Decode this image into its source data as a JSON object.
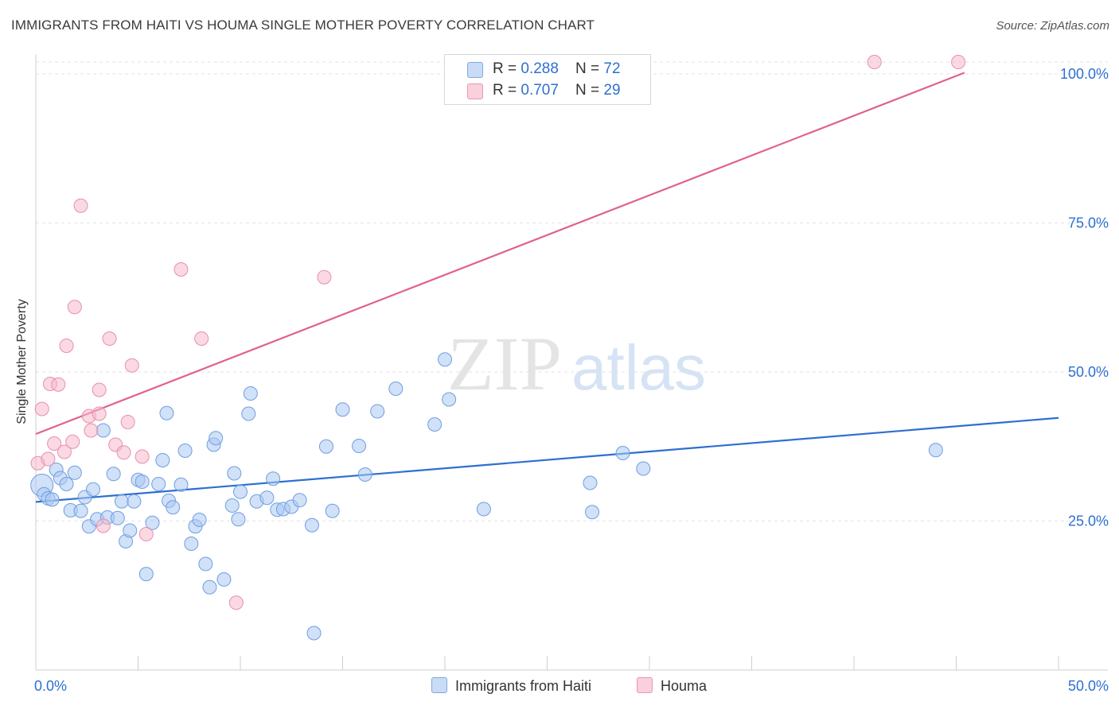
{
  "title": "IMMIGRANTS FROM HAITI VS HOUMA SINGLE MOTHER POVERTY CORRELATION CHART",
  "source": "Source: ZipAtlas.com",
  "watermark": {
    "zip": "ZIP",
    "atlas": "atlas"
  },
  "legend": {
    "series1": {
      "r_label": "R = ",
      "r": "0.288",
      "n_label": "N = ",
      "n": "72",
      "color": "#a9c9f3",
      "line": "#2e6fd0"
    },
    "series2": {
      "r_label": "R = ",
      "r": "0.707",
      "n_label": "N = ",
      "n": "29",
      "color": "#f6b9cc",
      "line": "#e0628b"
    }
  },
  "bottom_legend": {
    "series1": "Immigrants from Haiti",
    "series2": "Houma"
  },
  "chart_data": {
    "type": "scatter",
    "title": "IMMIGRANTS FROM HAITI VS HOUMA SINGLE MOTHER POVERTY CORRELATION CHART",
    "xlabel": "",
    "ylabel": "Single Mother Poverty",
    "xlim": [
      0,
      50
    ],
    "ylim": [
      0,
      102
    ],
    "x_tick_labels": [
      "0.0%",
      "50.0%"
    ],
    "y_ticks": [
      25,
      50,
      75,
      100
    ],
    "y_tick_labels": [
      "25.0%",
      "50.0%",
      "75.0%",
      "100.0%"
    ],
    "series": [
      {
        "name": "Immigrants from Haiti",
        "color": "#a9c9f3",
        "stroke": "#6f9fe0",
        "trend": {
          "x": [
            0,
            50
          ],
          "y": [
            28.2,
            42.3
          ]
        },
        "points": [
          {
            "x": 0.3,
            "y": 31.0,
            "r": 14
          },
          {
            "x": 0.4,
            "y": 29.5
          },
          {
            "x": 0.6,
            "y": 28.8
          },
          {
            "x": 0.8,
            "y": 28.6
          },
          {
            "x": 1.0,
            "y": 33.6
          },
          {
            "x": 1.2,
            "y": 32.2
          },
          {
            "x": 1.5,
            "y": 31.2
          },
          {
            "x": 1.7,
            "y": 26.8
          },
          {
            "x": 1.9,
            "y": 33.1
          },
          {
            "x": 2.2,
            "y": 26.7
          },
          {
            "x": 2.4,
            "y": 29.0
          },
          {
            "x": 2.6,
            "y": 24.1
          },
          {
            "x": 2.8,
            "y": 30.3
          },
          {
            "x": 3.0,
            "y": 25.3
          },
          {
            "x": 3.3,
            "y": 40.2
          },
          {
            "x": 3.5,
            "y": 25.6
          },
          {
            "x": 3.8,
            "y": 32.9
          },
          {
            "x": 4.0,
            "y": 25.5
          },
          {
            "x": 4.2,
            "y": 28.3
          },
          {
            "x": 4.4,
            "y": 21.6
          },
          {
            "x": 4.6,
            "y": 23.4
          },
          {
            "x": 4.8,
            "y": 28.3
          },
          {
            "x": 5.0,
            "y": 31.9
          },
          {
            "x": 5.2,
            "y": 31.6
          },
          {
            "x": 5.4,
            "y": 16.1
          },
          {
            "x": 5.7,
            "y": 24.7
          },
          {
            "x": 6.0,
            "y": 31.2
          },
          {
            "x": 6.2,
            "y": 35.2
          },
          {
            "x": 6.4,
            "y": 43.1
          },
          {
            "x": 6.5,
            "y": 28.4
          },
          {
            "x": 6.7,
            "y": 27.3
          },
          {
            "x": 7.1,
            "y": 31.1
          },
          {
            "x": 7.3,
            "y": 36.8
          },
          {
            "x": 7.6,
            "y": 21.2
          },
          {
            "x": 7.8,
            "y": 24.1
          },
          {
            "x": 8.0,
            "y": 25.2
          },
          {
            "x": 8.3,
            "y": 17.8
          },
          {
            "x": 8.5,
            "y": 13.9
          },
          {
            "x": 8.7,
            "y": 37.8
          },
          {
            "x": 8.8,
            "y": 38.9
          },
          {
            "x": 9.2,
            "y": 15.2
          },
          {
            "x": 9.6,
            "y": 27.6
          },
          {
            "x": 9.7,
            "y": 33.0
          },
          {
            "x": 9.9,
            "y": 25.3
          },
          {
            "x": 10.0,
            "y": 29.9
          },
          {
            "x": 10.4,
            "y": 43.0
          },
          {
            "x": 10.5,
            "y": 46.4
          },
          {
            "x": 10.8,
            "y": 28.3
          },
          {
            "x": 11.3,
            "y": 28.9
          },
          {
            "x": 11.6,
            "y": 32.1
          },
          {
            "x": 11.8,
            "y": 26.9
          },
          {
            "x": 12.1,
            "y": 27.0
          },
          {
            "x": 12.5,
            "y": 27.4
          },
          {
            "x": 12.9,
            "y": 28.5
          },
          {
            "x": 13.5,
            "y": 24.3
          },
          {
            "x": 13.6,
            "y": 6.2
          },
          {
            "x": 14.2,
            "y": 37.5
          },
          {
            "x": 14.5,
            "y": 26.7
          },
          {
            "x": 15.0,
            "y": 43.7
          },
          {
            "x": 15.8,
            "y": 37.6
          },
          {
            "x": 16.1,
            "y": 32.8
          },
          {
            "x": 16.7,
            "y": 43.4
          },
          {
            "x": 17.6,
            "y": 47.2
          },
          {
            "x": 19.5,
            "y": 41.2
          },
          {
            "x": 20.0,
            "y": 52.1
          },
          {
            "x": 20.2,
            "y": 45.4
          },
          {
            "x": 21.9,
            "y": 27.0
          },
          {
            "x": 27.1,
            "y": 31.4
          },
          {
            "x": 27.2,
            "y": 26.5
          },
          {
            "x": 28.7,
            "y": 36.4
          },
          {
            "x": 29.7,
            "y": 33.8
          },
          {
            "x": 44.0,
            "y": 36.9
          }
        ]
      },
      {
        "name": "Houma",
        "color": "#f6b9cc",
        "stroke": "#e88fac",
        "trend": {
          "x": [
            0,
            45.4
          ],
          "y": [
            39.6,
            100.2
          ]
        },
        "points": [
          {
            "x": 0.1,
            "y": 34.7
          },
          {
            "x": 0.3,
            "y": 43.8
          },
          {
            "x": 0.6,
            "y": 35.4
          },
          {
            "x": 0.7,
            "y": 48.0
          },
          {
            "x": 0.9,
            "y": 38.0
          },
          {
            "x": 1.1,
            "y": 47.9
          },
          {
            "x": 1.4,
            "y": 36.6
          },
          {
            "x": 1.5,
            "y": 54.4
          },
          {
            "x": 1.8,
            "y": 38.3
          },
          {
            "x": 1.9,
            "y": 60.9
          },
          {
            "x": 2.2,
            "y": 77.9
          },
          {
            "x": 2.6,
            "y": 42.6
          },
          {
            "x": 2.7,
            "y": 40.2
          },
          {
            "x": 3.1,
            "y": 47.0
          },
          {
            "x": 3.1,
            "y": 43.0
          },
          {
            "x": 3.3,
            "y": 24.2
          },
          {
            "x": 3.6,
            "y": 55.6
          },
          {
            "x": 3.9,
            "y": 37.8
          },
          {
            "x": 4.3,
            "y": 36.5
          },
          {
            "x": 4.5,
            "y": 41.6
          },
          {
            "x": 4.7,
            "y": 51.1
          },
          {
            "x": 5.2,
            "y": 35.8
          },
          {
            "x": 5.4,
            "y": 22.8
          },
          {
            "x": 7.1,
            "y": 67.2
          },
          {
            "x": 8.1,
            "y": 55.6
          },
          {
            "x": 9.8,
            "y": 11.3
          },
          {
            "x": 14.1,
            "y": 65.9
          },
          {
            "x": 41.0,
            "y": 102.0
          },
          {
            "x": 45.1,
            "y": 102.0
          }
        ]
      }
    ]
  }
}
